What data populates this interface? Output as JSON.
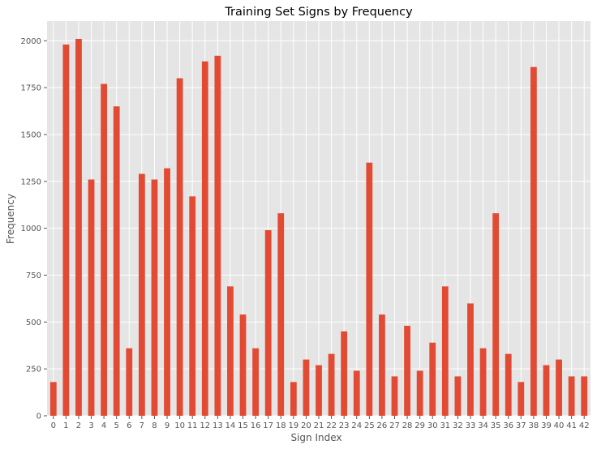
{
  "chart_data": {
    "type": "bar",
    "title": "Training Set Signs by Frequency",
    "xlabel": "Sign Index",
    "ylabel": "Frequency",
    "categories": [
      "0",
      "1",
      "2",
      "3",
      "4",
      "5",
      "6",
      "7",
      "8",
      "9",
      "10",
      "11",
      "12",
      "13",
      "14",
      "15",
      "16",
      "17",
      "18",
      "19",
      "20",
      "21",
      "22",
      "23",
      "24",
      "25",
      "26",
      "27",
      "28",
      "29",
      "30",
      "31",
      "32",
      "33",
      "34",
      "35",
      "36",
      "37",
      "38",
      "39",
      "40",
      "41",
      "42"
    ],
    "values": [
      180,
      1980,
      2010,
      1260,
      1770,
      1650,
      360,
      1290,
      1260,
      1320,
      1800,
      1170,
      1890,
      1920,
      690,
      540,
      360,
      990,
      1080,
      180,
      300,
      270,
      330,
      450,
      240,
      1350,
      540,
      210,
      480,
      240,
      390,
      690,
      210,
      599,
      360,
      1080,
      330,
      180,
      1860,
      270,
      300,
      210,
      210
    ],
    "yticks": [
      0,
      250,
      500,
      750,
      1000,
      1250,
      1500,
      1750,
      2000
    ],
    "ylim": [
      0,
      2105
    ],
    "grid": true,
    "colors": {
      "bar": "#E24A33",
      "plot_background": "#E5E5E5",
      "grid": "#FFFFFF"
    }
  }
}
